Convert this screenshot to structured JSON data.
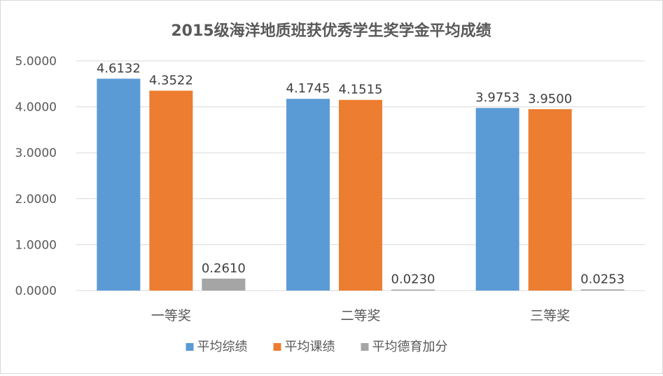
{
  "chart_data": {
    "type": "bar",
    "title": "2015级海洋地质班获优秀学生奖学金平均成绩",
    "xlabel": "",
    "ylabel": "",
    "categories": [
      "一等奖",
      "二等奖",
      "三等奖"
    ],
    "series": [
      {
        "name": "平均综绩",
        "values": [
          4.6132,
          4.1745,
          3.9753
        ],
        "labels": [
          "4.6132",
          "4.1745",
          "3.9753"
        ],
        "color": "#5B9BD5"
      },
      {
        "name": "平均课绩",
        "values": [
          4.3522,
          4.1515,
          3.95
        ],
        "labels": [
          "4.3522",
          "4.1515",
          "3.9500"
        ],
        "color": "#ED7D31"
      },
      {
        "name": "平均德育加分",
        "values": [
          0.261,
          0.023,
          0.0253
        ],
        "labels": [
          "0.2610",
          "0.0230",
          "0.0253"
        ],
        "color": "#A5A5A5"
      }
    ],
    "ylim": [
      0,
      5
    ],
    "yticks": [
      0,
      1,
      2,
      3,
      4,
      5
    ],
    "ytick_labels": [
      "0.0000",
      "1.0000",
      "2.0000",
      "3.0000",
      "4.0000",
      "5.0000"
    ],
    "grid": true,
    "legend_position": "bottom"
  }
}
